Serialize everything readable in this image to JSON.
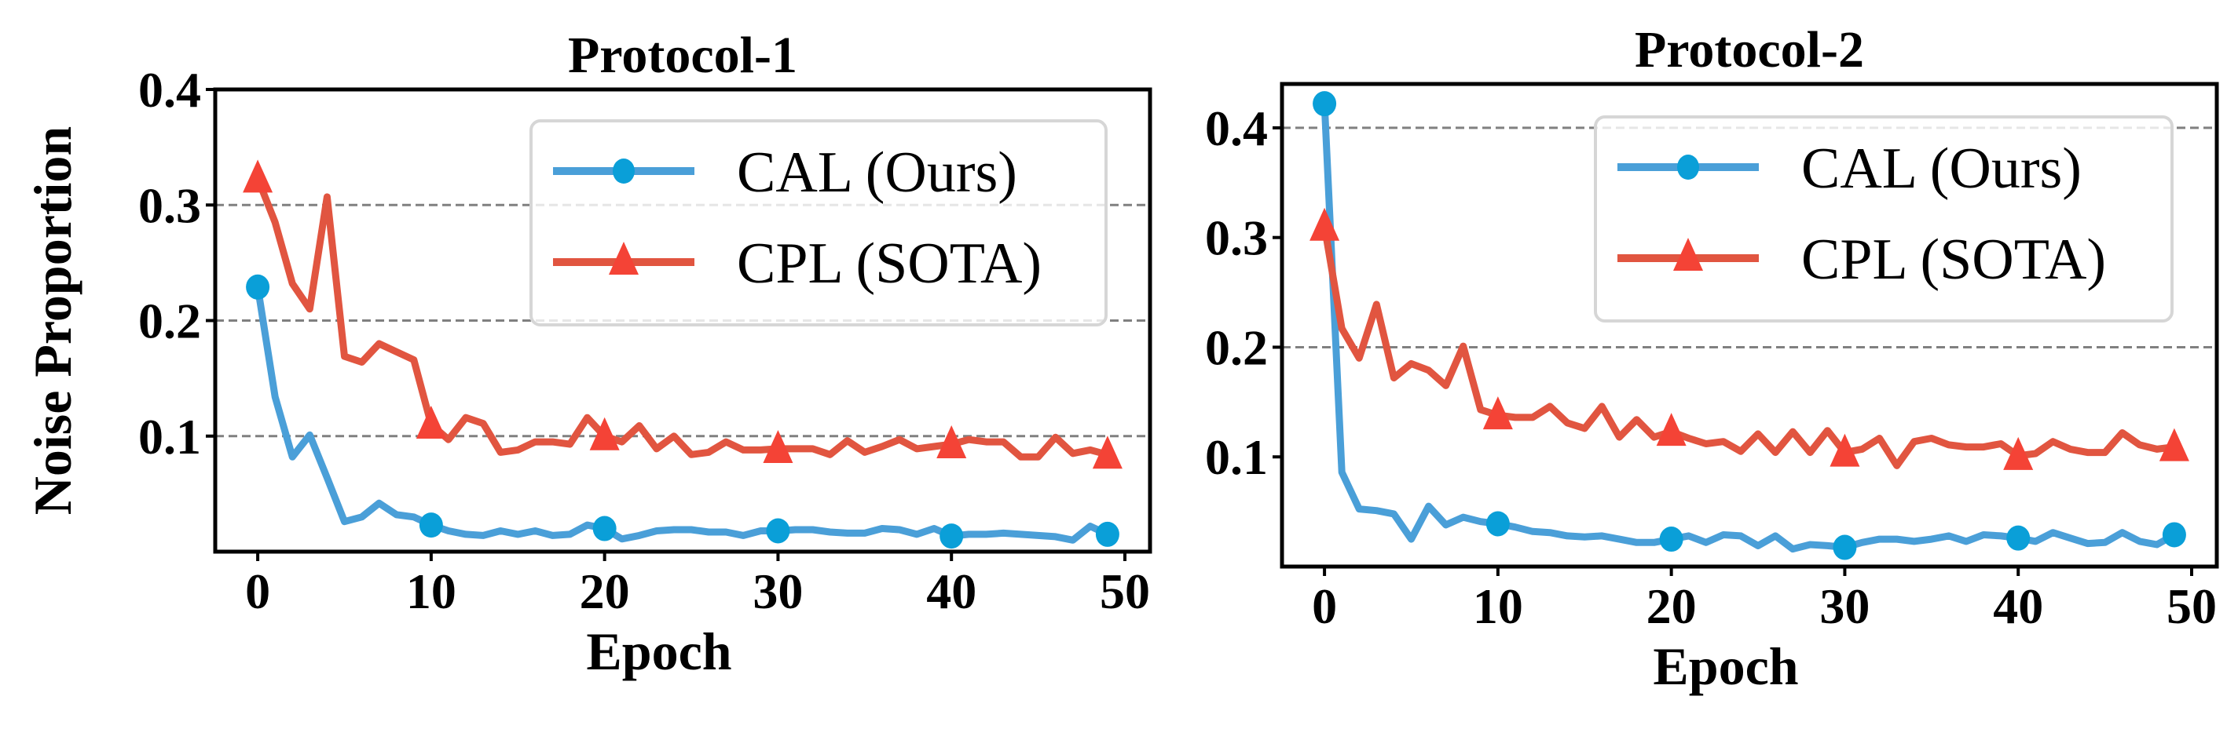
{
  "colors": {
    "cal_line": "#4a9fd8",
    "cal_marker": "#0a9fd8",
    "cpl_line": "#e15540",
    "cpl_marker": "#f44336",
    "grid": "#808080"
  },
  "chart_data": [
    {
      "type": "line",
      "title": "Protocol-1",
      "xlabel": "Epoch",
      "ylabel": "Noise Proportion",
      "xlim": [
        -2.45,
        51.45
      ],
      "ylim": [
        0,
        0.4
      ],
      "xticks": [
        0,
        10,
        20,
        30,
        40,
        50
      ],
      "yticks": [
        0.1,
        0.2,
        0.3,
        0.4
      ],
      "ytick_labels": [
        "0.1",
        "0.2",
        "0.3",
        "0.4"
      ],
      "grid_y": [
        0.1,
        0.2,
        0.3
      ],
      "grid_style": "dashed",
      "legend_placement": "top-right",
      "series": [
        {
          "name": "CAL (Ours)",
          "marker": "circle",
          "marker_every": [
            0,
            10,
            20,
            30,
            40,
            49
          ],
          "values": [
            0.229,
            0.134,
            0.082,
            0.101,
            0.064,
            0.026,
            0.03,
            0.042,
            0.032,
            0.03,
            0.023,
            0.018,
            0.015,
            0.014,
            0.018,
            0.015,
            0.018,
            0.014,
            0.015,
            0.023,
            0.02,
            0.011,
            0.014,
            0.018,
            0.019,
            0.019,
            0.017,
            0.017,
            0.014,
            0.018,
            0.018,
            0.019,
            0.019,
            0.017,
            0.016,
            0.016,
            0.02,
            0.019,
            0.015,
            0.02,
            0.0135,
            0.015,
            0.015,
            0.016,
            0.015,
            0.014,
            0.013,
            0.01,
            0.022,
            0.015
          ]
        },
        {
          "name": "CPL (SOTA)",
          "marker": "triangle",
          "marker_every": [
            0,
            10,
            20,
            30,
            40,
            49
          ],
          "values": [
            0.323,
            0.285,
            0.232,
            0.21,
            0.307,
            0.169,
            0.164,
            0.18,
            0.173,
            0.166,
            0.11,
            0.097,
            0.116,
            0.111,
            0.086,
            0.088,
            0.095,
            0.095,
            0.093,
            0.116,
            0.1,
            0.095,
            0.109,
            0.089,
            0.1,
            0.084,
            0.086,
            0.095,
            0.088,
            0.088,
            0.089,
            0.089,
            0.089,
            0.084,
            0.096,
            0.086,
            0.091,
            0.097,
            0.089,
            0.091,
            0.093,
            0.097,
            0.095,
            0.095,
            0.082,
            0.082,
            0.099,
            0.085,
            0.088,
            0.084
          ]
        }
      ]
    },
    {
      "type": "line",
      "title": "Protocol-2",
      "xlabel": "Epoch",
      "ylabel": "",
      "xlim": [
        -2.45,
        51.45
      ],
      "ylim": [
        0,
        0.44
      ],
      "xticks": [
        0,
        10,
        20,
        30,
        40,
        50
      ],
      "yticks": [
        0.1,
        0.2,
        0.3,
        0.4
      ],
      "ytick_labels": [
        "0.1",
        "0.2",
        "0.3",
        "0.4"
      ],
      "grid_y": [
        0.2,
        0.4
      ],
      "grid_style": "dashed",
      "legend_placement": "top-right",
      "series": [
        {
          "name": "CAL (Ours)",
          "marker": "circle",
          "marker_every": [
            0,
            10,
            20,
            30,
            40,
            49
          ],
          "values": [
            0.422,
            0.086,
            0.0525,
            0.051,
            0.048,
            0.025,
            0.055,
            0.038,
            0.045,
            0.041,
            0.039,
            0.036,
            0.032,
            0.031,
            0.028,
            0.027,
            0.028,
            0.025,
            0.022,
            0.022,
            0.025,
            0.028,
            0.022,
            0.029,
            0.028,
            0.019,
            0.028,
            0.016,
            0.02,
            0.019,
            0.0175,
            0.022,
            0.025,
            0.025,
            0.023,
            0.025,
            0.028,
            0.023,
            0.029,
            0.028,
            0.026,
            0.023,
            0.031,
            0.026,
            0.021,
            0.022,
            0.031,
            0.023,
            0.02,
            0.029
          ]
        },
        {
          "name": "CPL (SOTA)",
          "marker": "triangle",
          "marker_every": [
            0,
            10,
            20,
            30,
            40,
            49
          ],
          "values": [
            0.31,
            0.217,
            0.19,
            0.239,
            0.172,
            0.185,
            0.179,
            0.165,
            0.201,
            0.143,
            0.138,
            0.136,
            0.136,
            0.146,
            0.131,
            0.126,
            0.146,
            0.118,
            0.134,
            0.118,
            0.123,
            0.117,
            0.112,
            0.114,
            0.105,
            0.121,
            0.104,
            0.123,
            0.104,
            0.124,
            0.104,
            0.107,
            0.117,
            0.092,
            0.114,
            0.117,
            0.111,
            0.109,
            0.109,
            0.112,
            0.101,
            0.103,
            0.114,
            0.107,
            0.104,
            0.104,
            0.122,
            0.111,
            0.107,
            0.109
          ]
        }
      ]
    }
  ]
}
